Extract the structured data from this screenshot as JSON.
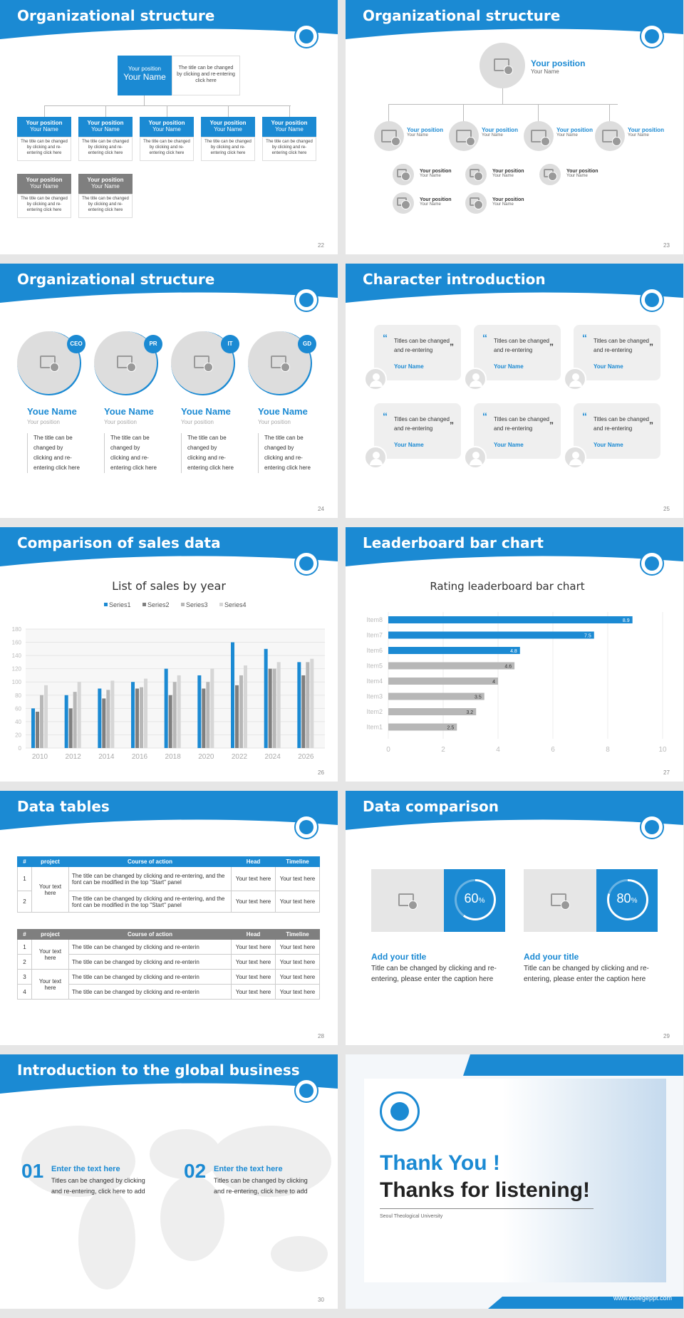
{
  "slides": [
    {
      "title": "Organizational structure",
      "page": "22",
      "top": {
        "pos": "Your position",
        "name": "Your Name",
        "desc": "The title can be changed by clicking and re-entering click here"
      },
      "boxes": [
        {
          "pos": "Your position",
          "name": "Your Name"
        },
        {
          "pos": "Your position",
          "name": "Your Name"
        },
        {
          "pos": "Your position",
          "name": "Your Name"
        },
        {
          "pos": "Your position",
          "name": "Your Name"
        },
        {
          "pos": "Your position",
          "name": "Your Name"
        }
      ],
      "box_desc": "The title can be changed by clicking and re-entering click here",
      "grey": [
        {
          "pos": "Your position",
          "name": "Your Name"
        },
        {
          "pos": "Your position",
          "name": "Your Name"
        }
      ]
    },
    {
      "title": "Organizational structure",
      "page": "23",
      "top": {
        "pos": "Your position",
        "name": "Your Name"
      },
      "mid": [
        {
          "pos": "Your position",
          "name": "Your Name"
        },
        {
          "pos": "Your position",
          "name": "Your Name"
        },
        {
          "pos": "Your position",
          "name": "Your Name"
        },
        {
          "pos": "Your position",
          "name": "Your Name"
        }
      ],
      "sub": [
        {
          "pos": "Your position",
          "name": "Your Name"
        },
        {
          "pos": "Your position",
          "name": "Your Name"
        },
        {
          "pos": "Your position",
          "name": "Your Name"
        },
        {
          "pos": "Your position",
          "name": "Your Name"
        },
        {
          "pos": "Your position",
          "name": "Your Name"
        }
      ]
    },
    {
      "title": "Organizational structure",
      "page": "24",
      "people": [
        {
          "tag": "CEO",
          "name": "Youe Name",
          "pos": "Your position",
          "desc": "The title can be changed by clicking and re-entering click here"
        },
        {
          "tag": "PR",
          "name": "Youe Name",
          "pos": "Your position",
          "desc": "The title can be changed by clicking and re-entering click here"
        },
        {
          "tag": "IT",
          "name": "Youe Name",
          "pos": "Your position",
          "desc": "The title can be changed by clicking and re-entering click here"
        },
        {
          "tag": "GD",
          "name": "Youe Name",
          "pos": "Your position",
          "desc": "The title can be changed by clicking and re-entering click here"
        }
      ]
    },
    {
      "title": "Character introduction",
      "page": "25",
      "cards": [
        {
          "text": "Titles can be changed and re-entering",
          "name": "Your Name"
        },
        {
          "text": "Titles can be changed and re-entering",
          "name": "Your Name"
        },
        {
          "text": "Titles can be changed and re-entering",
          "name": "Your Name"
        },
        {
          "text": "Titles can be changed and re-entering",
          "name": "Your Name"
        },
        {
          "text": "Titles can be changed and re-entering",
          "name": "Your Name"
        },
        {
          "text": "Titles can be changed and re-entering",
          "name": "Your Name"
        }
      ]
    },
    {
      "title": "Comparison of sales data",
      "page": "26"
    },
    {
      "title": "Leaderboard bar chart",
      "page": "27"
    },
    {
      "title": "Data tables",
      "page": "28",
      "t1": {
        "head": [
          "#",
          "project",
          "Course of action",
          "Head",
          "Timeline"
        ],
        "project": "Your text here",
        "rows": [
          {
            "n": "1",
            "course": "The title can be changed by clicking and re-entering, and the font can be modified in the top \"Start\" panel",
            "head": "Your text here",
            "time": "Your text here"
          },
          {
            "n": "2",
            "course": "The title can be changed by clicking and re-entering, and the font can be modified in the top \"Start\" panel",
            "head": "Your text here",
            "time": "Your text here"
          }
        ]
      },
      "t2": {
        "head": [
          "#",
          "project",
          "Course of action",
          "Head",
          "Timeline"
        ],
        "proj1": "Your text here",
        "proj2": "Your text here",
        "rows": [
          {
            "n": "1",
            "course": "The title can be changed by clicking and re-enterin",
            "head": "Your text here",
            "time": "Your text here"
          },
          {
            "n": "2",
            "course": "The title can be changed by clicking and re-enterin",
            "head": "Your text here",
            "time": "Your text here"
          },
          {
            "n": "3",
            "course": "The title can be changed by clicking and re-enterin",
            "head": "Your text here",
            "time": "Your text here"
          },
          {
            "n": "4",
            "course": "The title can be changed by clicking and re-enterin",
            "head": "Your text here",
            "time": "Your text here"
          }
        ]
      }
    },
    {
      "title": "Data comparison",
      "page": "29",
      "items": [
        {
          "pct": "60",
          "unit": "%",
          "value": 60,
          "title": "Add your title",
          "desc": "Title can be changed by clicking and re-entering, please enter the caption here"
        },
        {
          "pct": "80",
          "unit": "%",
          "value": 80,
          "title": "Add your title",
          "desc": "Title can be changed by clicking and re-entering, please enter the caption here"
        }
      ]
    },
    {
      "title": "Introduction to the global business",
      "page": "30",
      "items": [
        {
          "num": "01",
          "title": "Enter the text here",
          "desc": "Titles can be changed by clicking and re-entering, click here to add"
        },
        {
          "num": "02",
          "title": "Enter the text here",
          "desc": "Titles can be changed by clicking and re-entering, click here to add"
        }
      ]
    },
    {
      "thanks1": "Thank You !",
      "thanks2": "Thanks for listening!",
      "uni": "Seoul Theological University",
      "url": "www.collegeppt.com"
    }
  ],
  "chart_data": [
    {
      "type": "bar",
      "title": "List of sales by year",
      "categories": [
        "2010",
        "2012",
        "2014",
        "2016",
        "2018",
        "2020",
        "2022",
        "2024",
        "2026"
      ],
      "series": [
        {
          "name": "Series1",
          "values": [
            60,
            80,
            90,
            100,
            120,
            110,
            160,
            150,
            130
          ]
        },
        {
          "name": "Series2",
          "values": [
            55,
            60,
            75,
            90,
            80,
            90,
            95,
            120,
            110
          ]
        },
        {
          "name": "Series3",
          "values": [
            80,
            85,
            88,
            92,
            100,
            100,
            110,
            120,
            130
          ]
        },
        {
          "name": "Series4",
          "values": [
            95,
            100,
            102,
            105,
            110,
            120,
            125,
            130,
            135
          ]
        }
      ],
      "ylim": [
        0,
        180
      ],
      "yticks": [
        0,
        20,
        40,
        60,
        80,
        100,
        120,
        140,
        160,
        180
      ],
      "colors": [
        "#1b8ad3",
        "#7f7f7f",
        "#b7b7b7",
        "#d6d6d6"
      ]
    },
    {
      "type": "bar",
      "title": "Rating leaderboard bar chart",
      "orientation": "horizontal",
      "categories": [
        "Item8",
        "Item7",
        "Item6",
        "Item5",
        "Item4",
        "Item3",
        "Item2",
        "Item1"
      ],
      "values": [
        8.9,
        7.5,
        4.8,
        4.6,
        4,
        3.5,
        3.2,
        2.5
      ],
      "labels": [
        "8.9",
        "7.5",
        "4.8",
        "4.6",
        "4",
        "3.5",
        "3.2",
        "2.5"
      ],
      "xlim": [
        0,
        10
      ],
      "xticks": [
        "0",
        "2",
        "4",
        "6",
        "8",
        "10"
      ],
      "colors": [
        "#1b8ad3",
        "#1b8ad3",
        "#1b8ad3",
        "#b7b7b7",
        "#b7b7b7",
        "#b7b7b7",
        "#b7b7b7",
        "#b7b7b7"
      ]
    }
  ]
}
